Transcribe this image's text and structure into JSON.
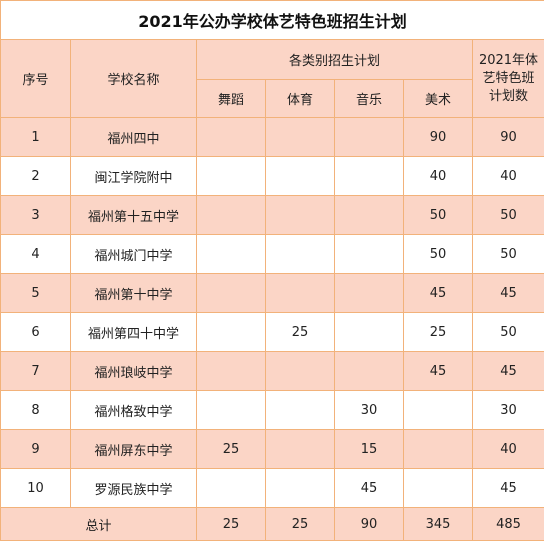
{
  "title": "2021年公办学校体艺特色班招生计划",
  "headers": {
    "seq": "序号",
    "school": "学校名称",
    "plan_group": "各类别招生计划",
    "dance": "舞蹈",
    "sports": "体育",
    "music": "音乐",
    "art": "美术",
    "total_plan_line1": "2021年体",
    "total_plan_line2": "艺特色班",
    "total_plan_line3": "计划数"
  },
  "rows": [
    {
      "seq": "1",
      "school": "福州四中",
      "dance": "",
      "sports": "",
      "music": "",
      "art": "90",
      "total": "90"
    },
    {
      "seq": "2",
      "school": "闽江学院附中",
      "dance": "",
      "sports": "",
      "music": "",
      "art": "40",
      "total": "40"
    },
    {
      "seq": "3",
      "school": "福州第十五中学",
      "dance": "",
      "sports": "",
      "music": "",
      "art": "50",
      "total": "50"
    },
    {
      "seq": "4",
      "school": "福州城门中学",
      "dance": "",
      "sports": "",
      "music": "",
      "art": "50",
      "total": "50"
    },
    {
      "seq": "5",
      "school": "福州第十中学",
      "dance": "",
      "sports": "",
      "music": "",
      "art": "45",
      "total": "45"
    },
    {
      "seq": "6",
      "school": "福州第四十中学",
      "dance": "",
      "sports": "25",
      "music": "",
      "art": "25",
      "total": "50"
    },
    {
      "seq": "7",
      "school": "福州琅岐中学",
      "dance": "",
      "sports": "",
      "music": "",
      "art": "45",
      "total": "45"
    },
    {
      "seq": "8",
      "school": "福州格致中学",
      "dance": "",
      "sports": "",
      "music": "30",
      "art": "",
      "total": "30"
    },
    {
      "seq": "9",
      "school": "福州屏东中学",
      "dance": "25",
      "sports": "",
      "music": "15",
      "art": "",
      "total": "40"
    },
    {
      "seq": "10",
      "school": "罗源民族中学",
      "dance": "",
      "sports": "",
      "music": "45",
      "art": "",
      "total": "45"
    }
  ],
  "totals": {
    "label": "总计",
    "dance": "25",
    "sports": "25",
    "music": "90",
    "art": "345",
    "total": "485"
  },
  "colors": {
    "border": "#f2b27a",
    "band": "#fbd5c6"
  }
}
